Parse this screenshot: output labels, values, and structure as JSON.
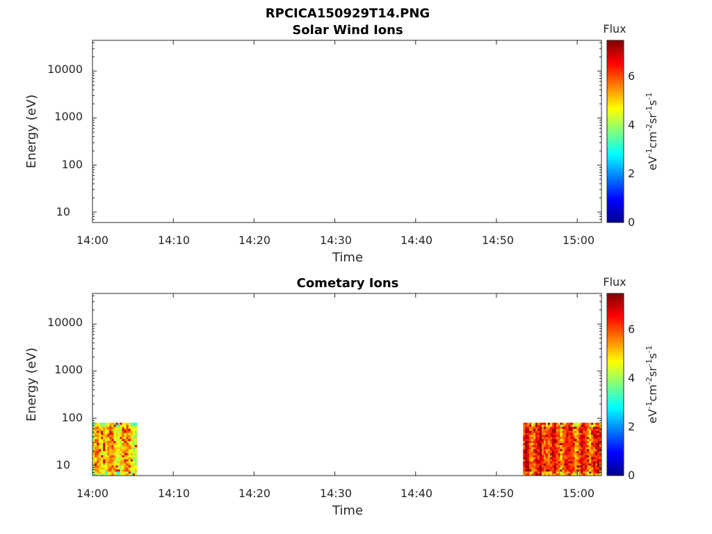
{
  "figure_title": "RPCICA150929T14.PNG",
  "colorbar": {
    "label": "Flux",
    "units_base": [
      "eV",
      "cm",
      "sr",
      "s"
    ],
    "units_exp": [
      "-1",
      "-2",
      "-1",
      "-1"
    ],
    "ticks": [
      "0",
      "2",
      "4",
      "6"
    ],
    "range": [
      0,
      7.4
    ],
    "colormap": "jet"
  },
  "chart_data": [
    {
      "type": "heatmap",
      "title": "Solar Wind Ions",
      "xlabel": "Time",
      "ylabel": "Energy (eV)",
      "x_tick_labels": [
        "14:00",
        "14:10",
        "14:20",
        "14:30",
        "14:40",
        "14:50",
        "15:00"
      ],
      "x_range": [
        "14:00",
        "15:03"
      ],
      "y_scale": "log",
      "y_tick_labels": [
        "10",
        "100",
        "1000",
        "10000"
      ],
      "y_range": [
        6,
        45000
      ],
      "grid": false,
      "blocks": []
    },
    {
      "type": "heatmap",
      "title": "Cometary Ions",
      "xlabel": "Time",
      "ylabel": "Energy (eV)",
      "x_tick_labels": [
        "14:00",
        "14:10",
        "14:20",
        "14:30",
        "14:40",
        "14:50",
        "15:00"
      ],
      "x_range": [
        "14:00",
        "15:03"
      ],
      "y_scale": "log",
      "y_tick_labels": [
        "10",
        "100",
        "1000",
        "10000"
      ],
      "y_range": [
        6,
        45000
      ],
      "grid": false,
      "blocks": [
        {
          "t_start": "14:00",
          "t_end": "14:05.5",
          "e_min": 6,
          "e_max": 80,
          "flux_typical": 5.0,
          "flux_peak": 6.8
        },
        {
          "t_start": "14:53.3",
          "t_end": "15:03",
          "e_min": 6,
          "e_max": 80,
          "flux_typical": 6.0,
          "flux_peak": 7.2
        }
      ]
    }
  ]
}
